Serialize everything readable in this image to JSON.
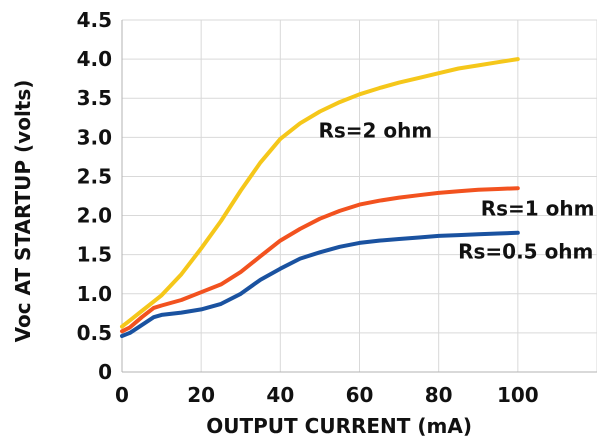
{
  "chart_data": {
    "type": "line",
    "xlabel": "OUTPUT CURRENT (mA)",
    "ylabel": "Voc AT STARTUP (volts)",
    "xlim": [
      0,
      120
    ],
    "ylim": [
      0,
      4.5
    ],
    "x_ticks": [
      "0",
      "20",
      "40",
      "60",
      "80",
      "100"
    ],
    "y_ticks": [
      "0",
      "0.5",
      "1.0",
      "1.5",
      "2.0",
      "2.5",
      "3.0",
      "3.5",
      "4.0",
      "4.5"
    ],
    "grid": true,
    "legend": "none",
    "series": [
      {
        "name": "Rs=2 ohm",
        "color": "#f5c71a",
        "x": [
          0,
          2,
          5,
          10,
          15,
          20,
          25,
          30,
          35,
          40,
          45,
          50,
          55,
          60,
          65,
          70,
          75,
          80,
          85,
          90,
          95,
          100
        ],
        "y": [
          0.58,
          0.66,
          0.78,
          0.98,
          1.25,
          1.58,
          1.93,
          2.32,
          2.68,
          2.98,
          3.18,
          3.33,
          3.45,
          3.55,
          3.63,
          3.7,
          3.76,
          3.82,
          3.88,
          3.92,
          3.96,
          4.0
        ]
      },
      {
        "name": "Rs=1 ohm",
        "color": "#f2521f",
        "x": [
          0,
          2,
          5,
          8,
          10,
          15,
          20,
          25,
          30,
          35,
          40,
          45,
          50,
          55,
          60,
          65,
          70,
          75,
          80,
          85,
          90,
          95,
          100
        ],
        "y": [
          0.52,
          0.57,
          0.7,
          0.82,
          0.85,
          0.92,
          1.02,
          1.12,
          1.28,
          1.48,
          1.68,
          1.83,
          1.96,
          2.06,
          2.14,
          2.19,
          2.23,
          2.26,
          2.29,
          2.31,
          2.33,
          2.34,
          2.35
        ]
      },
      {
        "name": "Rs=0.5 ohm",
        "color": "#1a52a0",
        "x": [
          0,
          2,
          5,
          8,
          10,
          15,
          20,
          25,
          30,
          35,
          40,
          45,
          50,
          55,
          60,
          65,
          70,
          75,
          80,
          85,
          90,
          95,
          100
        ],
        "y": [
          0.46,
          0.5,
          0.6,
          0.7,
          0.73,
          0.76,
          0.8,
          0.87,
          1.0,
          1.18,
          1.32,
          1.45,
          1.53,
          1.6,
          1.65,
          1.68,
          1.7,
          1.72,
          1.74,
          1.75,
          1.76,
          1.77,
          1.78
        ]
      }
    ],
    "annotations": [
      {
        "text": "Rs=2 ohm",
        "x": 64,
        "y": 3.0
      },
      {
        "text": "Rs=1 ohm",
        "x": 105,
        "y": 2.0
      },
      {
        "text": "Rs=0.5 ohm",
        "x": 102,
        "y": 1.45
      }
    ]
  }
}
